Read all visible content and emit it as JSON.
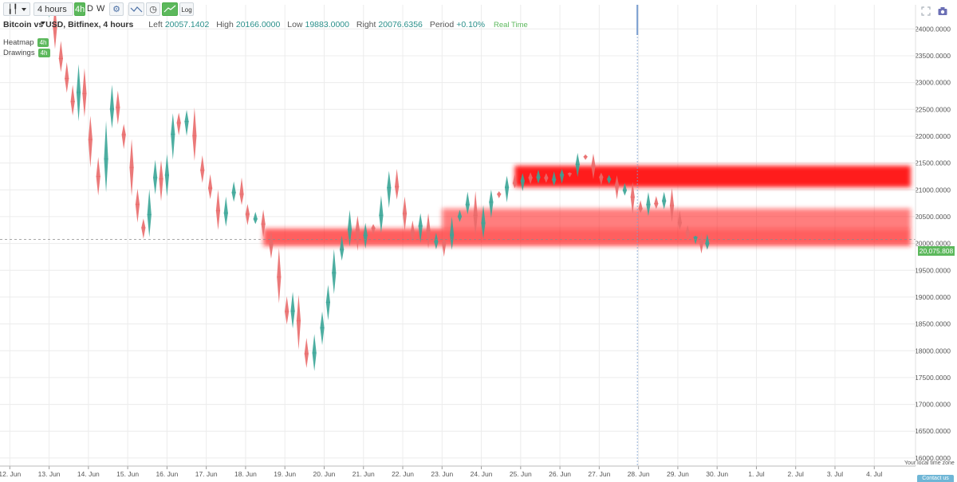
{
  "toolbar": {
    "chart_type_icon": "candlestick-icon",
    "interval_select": "4 hours",
    "interval_buttons": [
      "4h",
      "D",
      "W"
    ],
    "settings_icon": "gear-icon",
    "tools": [
      "line-tool-icon",
      "clock-icon",
      "trend-tool-icon"
    ],
    "log_label": "Log",
    "fullscreen_icon": "fullscreen-icon",
    "camera_icon": "camera-icon"
  },
  "info": {
    "title": "Bitcoin vs USD, Bitfinex, 4 hours",
    "left_label": "Left",
    "left_value": "20057.1402",
    "high_label": "High",
    "high_value": "20166.0000",
    "low_label": "Low",
    "low_value": "19883.0000",
    "right_label": "Right",
    "right_value": "20076.6356",
    "period_label": "Period",
    "period_value": "+0.10%",
    "realtime": "Real Time"
  },
  "overlays": [
    {
      "label": "Heatmap",
      "badge": "4h"
    },
    {
      "label": "Drawings",
      "badge": "4h"
    }
  ],
  "current_price_label": "20,075.808",
  "timezone_note": "Your local time zone",
  "contact_label": "Contact us",
  "colors": {
    "up": "#3aa597",
    "down": "#e96a6a",
    "accent": "#5cb85c",
    "heat": "#ff1a1a"
  },
  "chart_data": {
    "type": "candlestick",
    "x_ticks": [
      "12. Jun",
      "13. Jun",
      "14. Jun",
      "15. Jun",
      "16. Jun",
      "17. Jun",
      "18. Jun",
      "19. Jun",
      "20. Jun",
      "21. Jun",
      "22. Jun",
      "23. Jun",
      "24. Jun",
      "25. Jun",
      "26. Jun",
      "27. Jun",
      "28. Jun",
      "29. Jun",
      "30. Jun",
      "1. Jul",
      "2. Jul",
      "3. Jul",
      "4. Jul"
    ],
    "y_ticks": [
      "24000.0000",
      "23500.0000",
      "23000.0000",
      "22500.0000",
      "22000.0000",
      "21500.0000",
      "21000.0000",
      "20500.0000",
      "20000.0000",
      "19500.0000",
      "19000.0000",
      "18500.0000",
      "18000.0000",
      "17500.0000",
      "17000.0000",
      "16500.0000",
      "16000.0000"
    ],
    "ylim": [
      15850,
      24450
    ],
    "xlim_days": [
      11.75,
      35.05
    ],
    "crosshair_day": 27.97,
    "current_price": 20075.808,
    "heat_zones": [
      {
        "from_day": 18.45,
        "to_day": 35.05,
        "low": 19950,
        "high": 20280,
        "intensity": 0.7
      },
      {
        "from_day": 23.0,
        "to_day": 35.05,
        "low": 20280,
        "high": 20650,
        "intensity": 0.55
      },
      {
        "from_day": 24.85,
        "to_day": 35.05,
        "low": 21050,
        "high": 21450,
        "intensity": 1.0
      }
    ],
    "path": [
      [
        12.8,
        24300
      ],
      [
        13.0,
        24400
      ],
      [
        13.15,
        23700
      ],
      [
        13.3,
        23300
      ],
      [
        13.45,
        22900
      ],
      [
        13.6,
        22400
      ],
      [
        13.75,
        23300
      ],
      [
        13.9,
        22300
      ],
      [
        14.05,
        21500
      ],
      [
        14.25,
        21000
      ],
      [
        14.45,
        22200
      ],
      [
        14.6,
        22800
      ],
      [
        14.75,
        22200
      ],
      [
        14.9,
        21900
      ],
      [
        15.1,
        21000
      ],
      [
        15.25,
        20500
      ],
      [
        15.4,
        20100
      ],
      [
        15.55,
        21000
      ],
      [
        15.7,
        21500
      ],
      [
        15.85,
        20900
      ],
      [
        16.0,
        21700
      ],
      [
        16.15,
        22500
      ],
      [
        16.3,
        22000
      ],
      [
        16.5,
        22400
      ],
      [
        16.7,
        21600
      ],
      [
        16.9,
        21200
      ],
      [
        17.1,
        20800
      ],
      [
        17.3,
        20400
      ],
      [
        17.5,
        20800
      ],
      [
        17.7,
        21100
      ],
      [
        17.9,
        20700
      ],
      [
        18.05,
        20400
      ],
      [
        18.25,
        20600
      ],
      [
        18.45,
        20100
      ],
      [
        18.65,
        19800
      ],
      [
        18.85,
        19000
      ],
      [
        19.05,
        18500
      ],
      [
        19.2,
        19000
      ],
      [
        19.35,
        18200
      ],
      [
        19.55,
        17700
      ],
      [
        19.75,
        18200
      ],
      [
        19.95,
        18700
      ],
      [
        20.1,
        19200
      ],
      [
        20.25,
        19700
      ],
      [
        20.45,
        20050
      ],
      [
        20.65,
        20450
      ],
      [
        20.85,
        20000
      ],
      [
        21.05,
        20350
      ],
      [
        21.25,
        20250
      ],
      [
        21.45,
        20800
      ],
      [
        21.65,
        21250
      ],
      [
        21.85,
        20800
      ],
      [
        22.05,
        20350
      ],
      [
        22.25,
        20150
      ],
      [
        22.45,
        20550
      ],
      [
        22.65,
        20000
      ],
      [
        22.85,
        20200
      ],
      [
        23.05,
        19900
      ],
      [
        23.25,
        20400
      ],
      [
        23.45,
        20550
      ],
      [
        23.65,
        20800
      ],
      [
        23.85,
        20200
      ],
      [
        24.05,
        20600
      ],
      [
        24.25,
        20950
      ],
      [
        24.45,
        20900
      ],
      [
        24.65,
        21150
      ],
      [
        24.85,
        21050
      ],
      [
        25.05,
        21300
      ],
      [
        25.25,
        21200
      ],
      [
        25.45,
        21350
      ],
      [
        25.65,
        21100
      ],
      [
        25.85,
        21300
      ],
      [
        26.05,
        21350
      ],
      [
        26.25,
        21250
      ],
      [
        26.45,
        21600
      ],
      [
        26.65,
        21500
      ],
      [
        26.85,
        21250
      ],
      [
        27.05,
        21100
      ],
      [
        27.25,
        21200
      ],
      [
        27.45,
        20900
      ],
      [
        27.65,
        21050
      ],
      [
        27.85,
        20750
      ],
      [
        28.05,
        20650
      ],
      [
        28.25,
        20850
      ],
      [
        28.45,
        20700
      ],
      [
        28.65,
        20950
      ],
      [
        28.85,
        20450
      ],
      [
        29.05,
        20250
      ],
      [
        29.25,
        20150
      ],
      [
        29.45,
        20050
      ],
      [
        29.6,
        20000
      ],
      [
        29.75,
        20076
      ]
    ]
  }
}
